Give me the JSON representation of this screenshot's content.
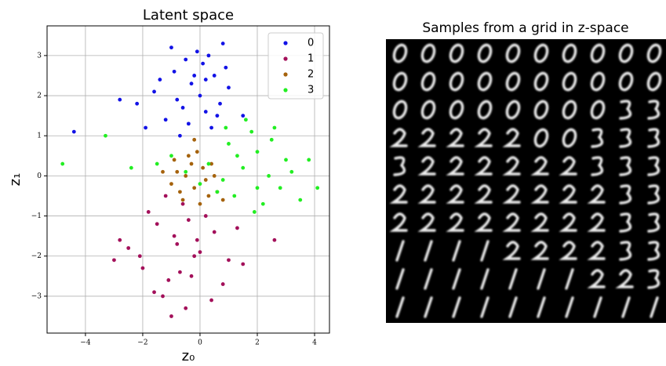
{
  "chart_data": [
    {
      "type": "scatter",
      "title": "Latent space",
      "x_label": "z₀",
      "y_label": "z₁",
      "xlim": [
        -5.34,
        4.52
      ],
      "ylim": [
        -3.92,
        3.74
      ],
      "xticks": [
        {
          "value": -4,
          "label": "−4"
        },
        {
          "value": -2,
          "label": "−2"
        },
        0,
        2,
        4
      ],
      "yticks": [
        {
          "value": -3,
          "label": "−3"
        },
        {
          "value": -2,
          "label": "−2"
        },
        {
          "value": -1,
          "label": "−1"
        },
        0,
        1,
        2,
        3
      ],
      "grid": true,
      "legend": "upper right",
      "series": [
        {
          "name": "0",
          "color": "#1212e6",
          "x": [
            -0.3,
            0.1,
            -0.8,
            0.5,
            -1.2,
            0.8,
            -0.5,
            0.2,
            -1.6,
            1.0,
            -0.1,
            0.4,
            -2.2,
            -0.9,
            0.0,
            0.6,
            -0.4,
            -1.4,
            0.9,
            -2.8,
            -4.4,
            0.3,
            -0.7,
            1.5,
            -0.2,
            -1.9,
            0.7,
            -1.0,
            0.2,
            -0.6
          ],
          "values": [
            2.3,
            2.8,
            1.9,
            2.5,
            1.4,
            3.3,
            2.9,
            1.6,
            2.1,
            2.2,
            3.1,
            1.2,
            1.8,
            2.6,
            2.0,
            1.5,
            1.3,
            2.4,
            2.7,
            1.9,
            1.1,
            3.0,
            1.0,
            1.5,
            2.5,
            1.2,
            1.8,
            3.2,
            2.4,
            1.7
          ]
        },
        {
          "name": "1",
          "color": "#a3105a",
          "x": [
            -0.8,
            -1.5,
            -0.2,
            0.5,
            -2.0,
            -1.1,
            0.2,
            -0.5,
            -2.5,
            1.0,
            -1.8,
            -0.9,
            0.8,
            -0.3,
            -1.3,
            -2.8,
            1.5,
            -0.6,
            0.0,
            -1.0,
            2.6,
            -2.1,
            -0.4,
            -1.6,
            0.4,
            -1.2,
            -0.7,
            1.3,
            -0.1,
            -3.0
          ],
          "values": [
            -1.7,
            -1.2,
            -2.0,
            -1.4,
            -2.3,
            -2.6,
            -1.0,
            -3.3,
            -1.8,
            -2.1,
            -0.9,
            -1.5,
            -2.7,
            -2.5,
            -3.0,
            -1.6,
            -2.2,
            -0.7,
            -1.9,
            -3.5,
            -1.6,
            -2.0,
            -1.1,
            -2.9,
            -3.1,
            -0.5,
            -2.4,
            -1.3,
            -1.6,
            -2.1
          ]
        },
        {
          "name": "2",
          "color": "#a5620c",
          "x": [
            -0.5,
            -0.2,
            0.1,
            -0.8,
            0.3,
            -0.4,
            -1.0,
            0.5,
            -0.1,
            -0.6,
            0.2,
            -0.3,
            0.6,
            -0.9,
            0.0,
            0.4,
            -0.7,
            0.8,
            -1.3,
            -0.2
          ],
          "values": [
            0.0,
            -0.3,
            0.2,
            0.1,
            -0.5,
            0.5,
            -0.2,
            0.0,
            0.6,
            -0.6,
            -0.1,
            0.3,
            -0.4,
            0.4,
            -0.7,
            0.3,
            -0.4,
            -0.6,
            0.1,
            0.9
          ]
        },
        {
          "name": "3",
          "color": "#22ee22",
          "x": [
            1.5,
            2.0,
            0.8,
            2.5,
            1.2,
            3.0,
            0.3,
            1.8,
            2.8,
            -0.5,
            1.0,
            3.5,
            2.2,
            0.6,
            -1.5,
            1.6,
            2.6,
            4.1,
            -3.3,
            -4.8,
            0.0,
            1.3,
            3.2,
            2.0,
            -2.4,
            0.9,
            1.9,
            2.4,
            -1.0,
            3.8
          ],
          "values": [
            0.2,
            0.6,
            -0.1,
            0.9,
            -0.5,
            0.4,
            0.3,
            1.1,
            -0.3,
            0.1,
            0.8,
            -0.6,
            -0.7,
            -0.4,
            0.3,
            1.4,
            1.2,
            -0.3,
            1.0,
            0.3,
            -0.2,
            0.5,
            0.1,
            -0.3,
            0.2,
            1.2,
            -0.9,
            0.0,
            0.5,
            0.4
          ]
        }
      ]
    },
    {
      "type": "image",
      "title": "Samples from a grid in z-space"
    }
  ]
}
